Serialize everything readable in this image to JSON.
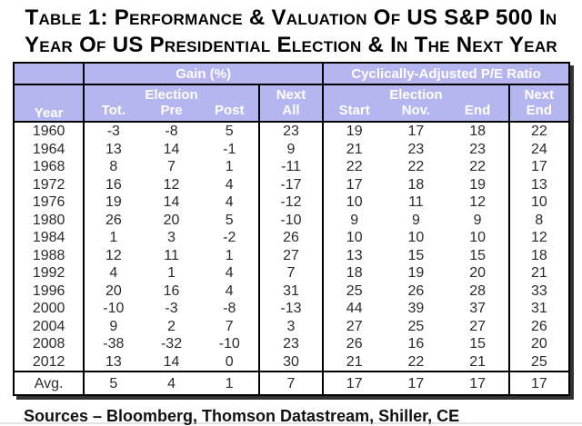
{
  "title": {
    "line1": "Table 1: Performance & Valuation Of US S&P 500 In",
    "line2": "Year Of US Presidential Election & In The Next Year"
  },
  "table": {
    "groups": {
      "gain": "Gain (%)",
      "pe": "Cyclically-Adjusted P/E Ratio"
    },
    "year_header": "Year",
    "election_label": "Election",
    "next_label": "Next",
    "sub_headers": [
      "Tot.",
      "Pre",
      "Post",
      "All",
      "Start",
      "Nov.",
      "End",
      "End"
    ],
    "rows": [
      {
        "year": "1960",
        "values": [
          "-3",
          "-8",
          "5",
          "23",
          "19",
          "17",
          "18",
          "22"
        ]
      },
      {
        "year": "1964",
        "values": [
          "13",
          "14",
          "-1",
          "9",
          "21",
          "23",
          "23",
          "24"
        ]
      },
      {
        "year": "1968",
        "values": [
          "8",
          "7",
          "1",
          "-11",
          "22",
          "22",
          "22",
          "17"
        ]
      },
      {
        "year": "1972",
        "values": [
          "16",
          "12",
          "4",
          "-17",
          "17",
          "18",
          "19",
          "13"
        ]
      },
      {
        "year": "1976",
        "values": [
          "19",
          "14",
          "4",
          "-12",
          "10",
          "11",
          "12",
          "10"
        ]
      },
      {
        "year": "1980",
        "values": [
          "26",
          "20",
          "5",
          "-10",
          "9",
          "9",
          "9",
          "8"
        ]
      },
      {
        "year": "1984",
        "values": [
          "1",
          "3",
          "-2",
          "26",
          "10",
          "10",
          "10",
          "12"
        ]
      },
      {
        "year": "1988",
        "values": [
          "12",
          "11",
          "1",
          "27",
          "13",
          "15",
          "15",
          "18"
        ]
      },
      {
        "year": "1992",
        "values": [
          "4",
          "1",
          "4",
          "7",
          "18",
          "19",
          "20",
          "21"
        ]
      },
      {
        "year": "1996",
        "values": [
          "20",
          "16",
          "4",
          "31",
          "25",
          "26",
          "28",
          "33"
        ]
      },
      {
        "year": "2000",
        "values": [
          "-10",
          "-3",
          "-8",
          "-13",
          "44",
          "39",
          "37",
          "31"
        ]
      },
      {
        "year": "2004",
        "values": [
          "9",
          "2",
          "7",
          "3",
          "27",
          "25",
          "27",
          "26"
        ]
      },
      {
        "year": "2008",
        "values": [
          "-38",
          "-32",
          "-10",
          "23",
          "26",
          "16",
          "15",
          "20"
        ]
      },
      {
        "year": "2012",
        "values": [
          "13",
          "14",
          "0",
          "30",
          "21",
          "22",
          "21",
          "25"
        ]
      }
    ],
    "avg_row": {
      "year": "Avg.",
      "values": [
        "5",
        "4",
        "1",
        "7",
        "17",
        "17",
        "17",
        "17"
      ]
    },
    "colors": {
      "header_bg": "#b5b5ef",
      "header_text": "#ffffff",
      "border": "#000000"
    }
  },
  "sources": "Sources – Bloomberg, Thomson Datastream, Shiller, CE"
}
